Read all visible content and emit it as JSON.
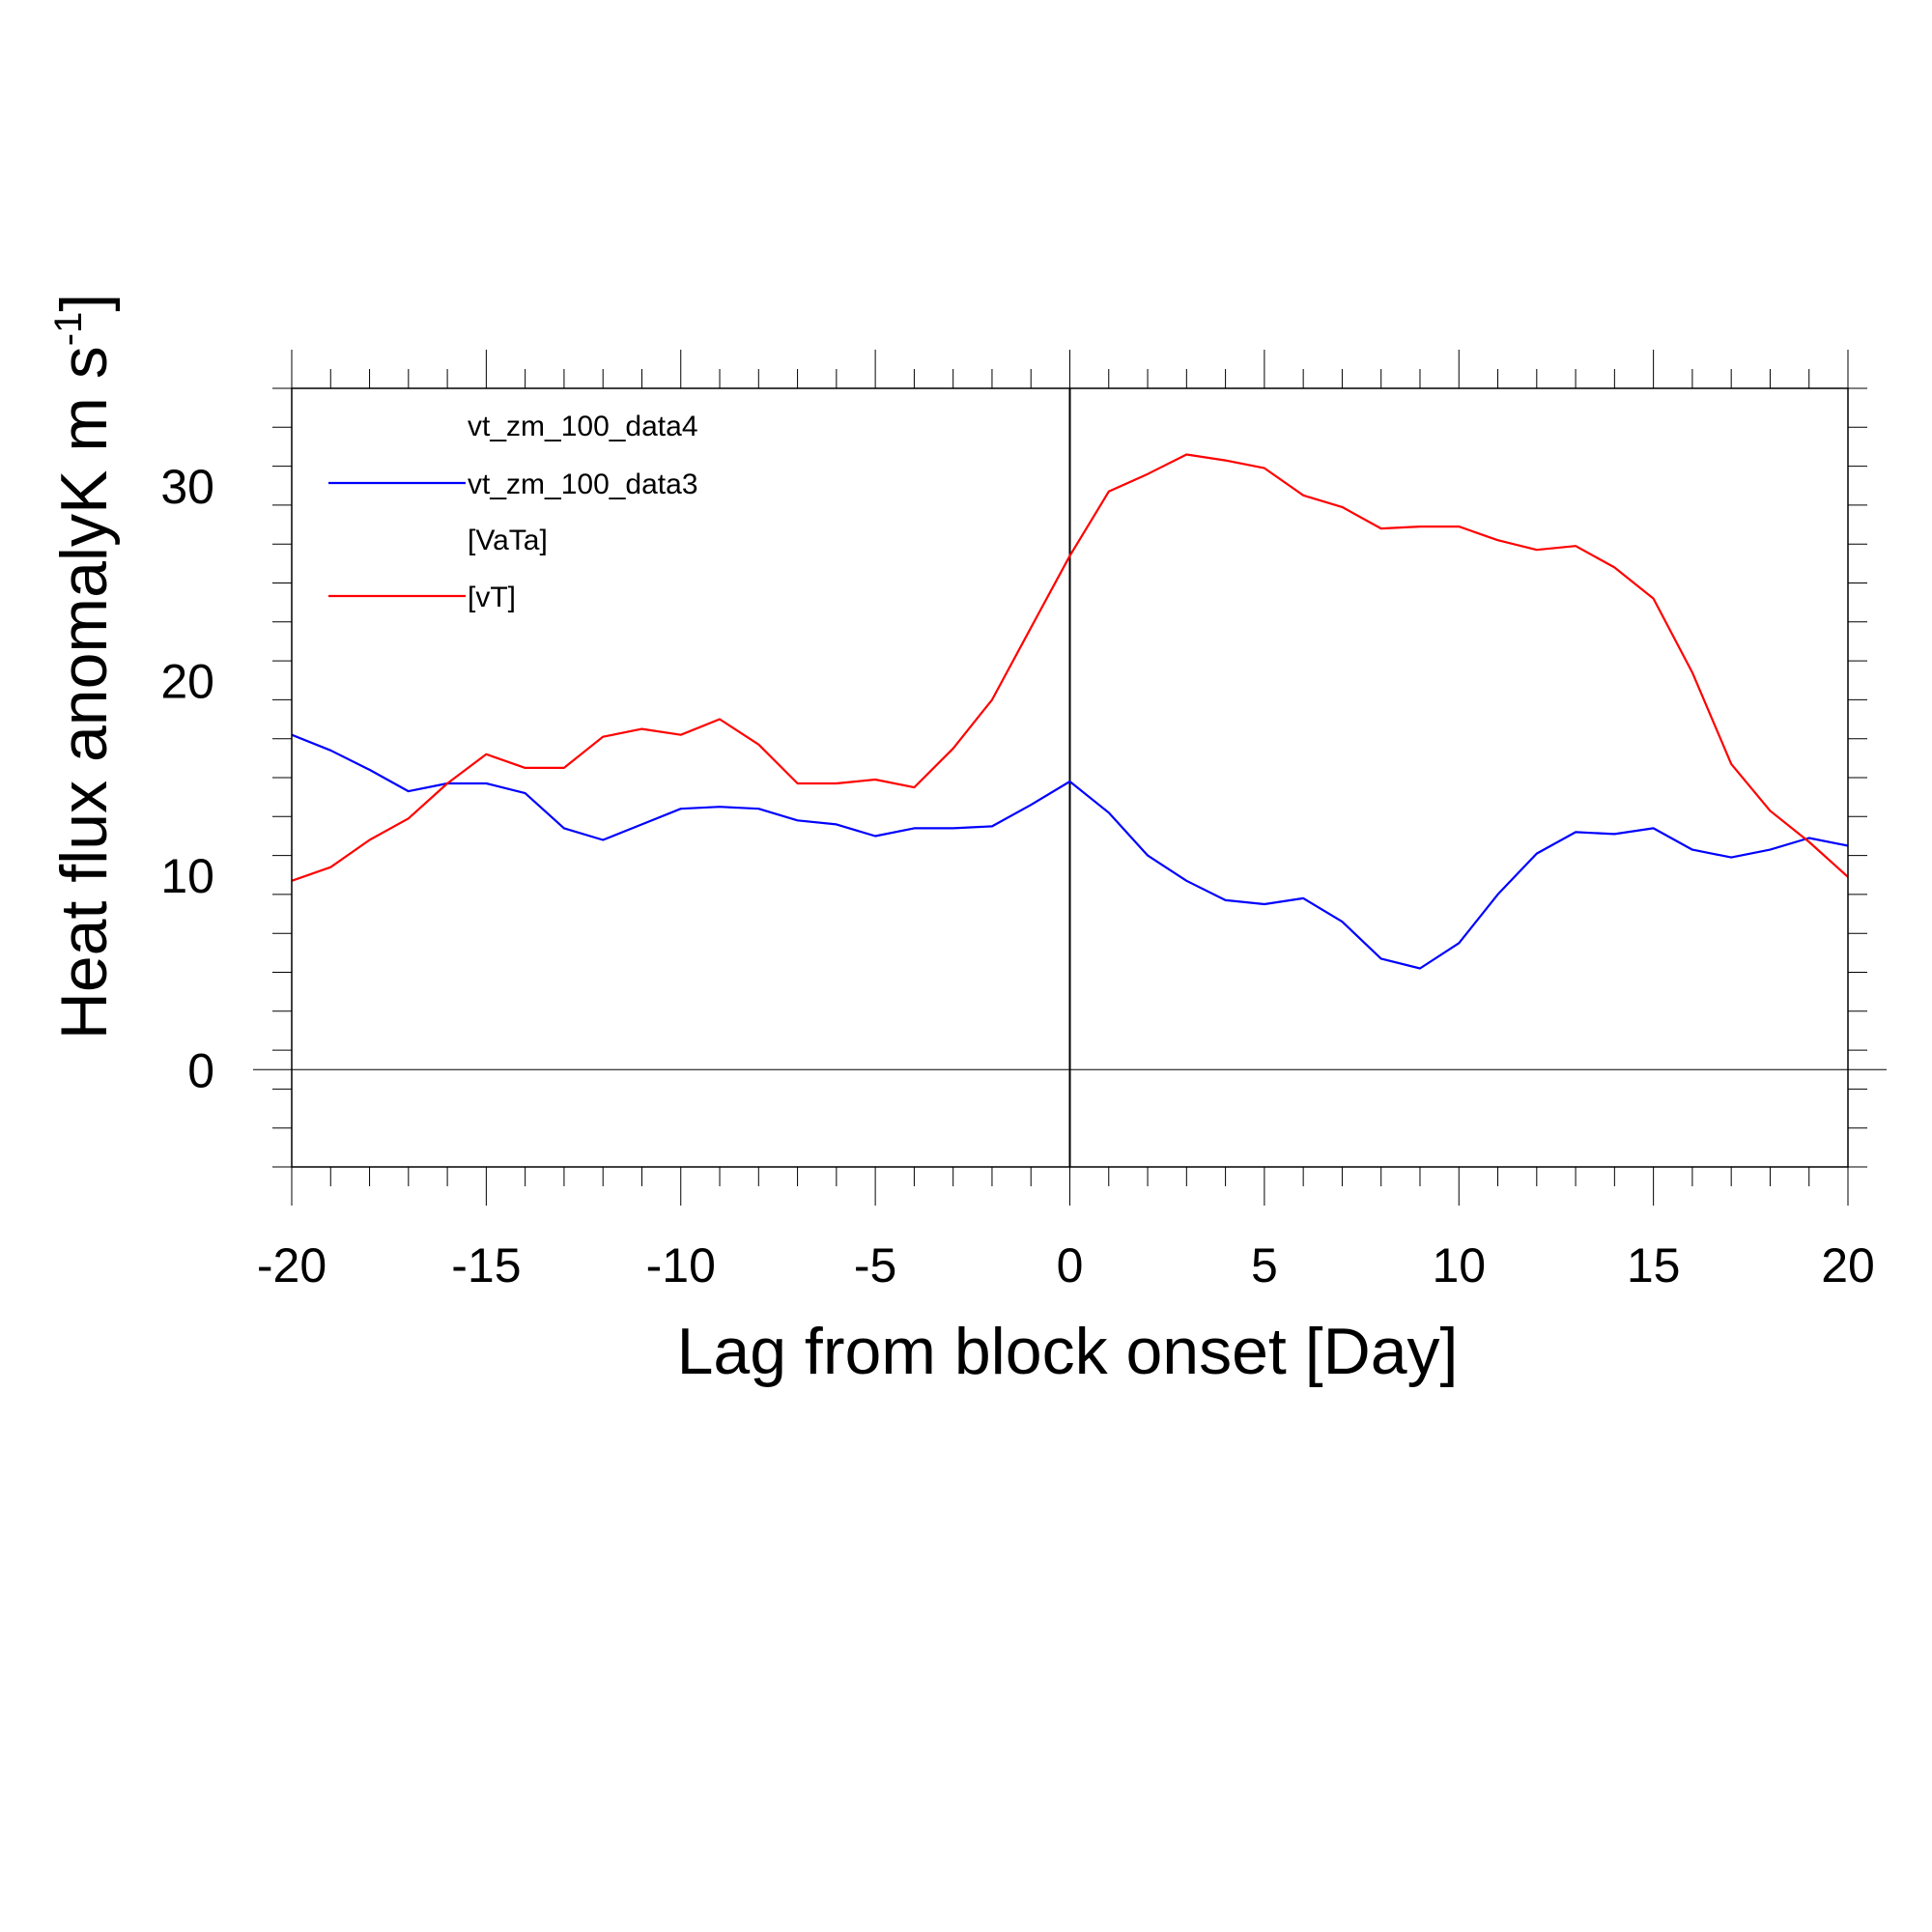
{
  "chart_data": {
    "type": "line",
    "title": "",
    "xlabel": "Lag from block onset [Day]",
    "ylabel": "Heat flux anomalyK m s",
    "ylabel_superscript": "-1",
    "ylabel_suffix": "]",
    "xlim": [
      -20,
      20
    ],
    "ylim": [
      -5,
      35
    ],
    "x_ticks": [
      -20,
      -15,
      -10,
      -5,
      0,
      5,
      10,
      15,
      20
    ],
    "y_ticks": [
      0,
      10,
      20,
      30
    ],
    "reference_lines": {
      "x": 0,
      "y": 0
    },
    "grid": false,
    "legend": {
      "placement": "top-left",
      "entries": [
        {
          "label": "vt_zm_100_data4",
          "color": "",
          "line": false
        },
        {
          "label": "vt_zm_100_data3",
          "color": "#0000ff",
          "line": true
        },
        {
          "label": "[VaTa]",
          "color": "",
          "line": false
        },
        {
          "label": "[vT]",
          "color": "#ff0000",
          "line": true
        }
      ]
    },
    "x": [
      -20,
      -19,
      -18,
      -17,
      -16,
      -15,
      -14,
      -13,
      -12,
      -11,
      -10,
      -9,
      -8,
      -7,
      -6,
      -5,
      -4,
      -3,
      -2,
      -1,
      0,
      1,
      2,
      3,
      4,
      5,
      6,
      7,
      8,
      9,
      10,
      11,
      12,
      13,
      14,
      15,
      16,
      17,
      18,
      19,
      20
    ],
    "series": [
      {
        "name": "vt_zm_100_data3",
        "color": "#0000ff",
        "values": [
          17.2,
          16.4,
          15.4,
          14.3,
          14.7,
          14.7,
          14.2,
          12.4,
          11.8,
          12.6,
          13.4,
          13.5,
          13.4,
          12.8,
          12.6,
          12.0,
          12.4,
          12.4,
          12.5,
          13.6,
          14.8,
          13.2,
          11.0,
          9.7,
          8.7,
          8.5,
          8.8,
          7.6,
          5.7,
          5.2,
          6.5,
          9.0,
          11.1,
          12.2,
          12.1,
          12.4,
          11.3,
          10.9,
          11.3,
          11.9,
          11.5
        ]
      },
      {
        "name": "[vT]",
        "color": "#ff0000",
        "values": [
          9.7,
          10.4,
          11.8,
          12.9,
          14.7,
          16.2,
          15.5,
          15.5,
          17.1,
          17.5,
          17.2,
          18.0,
          16.7,
          14.7,
          14.7,
          14.9,
          14.5,
          16.5,
          19.0,
          22.7,
          26.4,
          29.7,
          30.6,
          31.6,
          31.3,
          30.9,
          29.5,
          28.9,
          27.8,
          27.9,
          27.9,
          27.2,
          26.7,
          26.9,
          25.8,
          24.2,
          20.4,
          15.7,
          13.3,
          11.7,
          9.9
        ]
      }
    ]
  }
}
